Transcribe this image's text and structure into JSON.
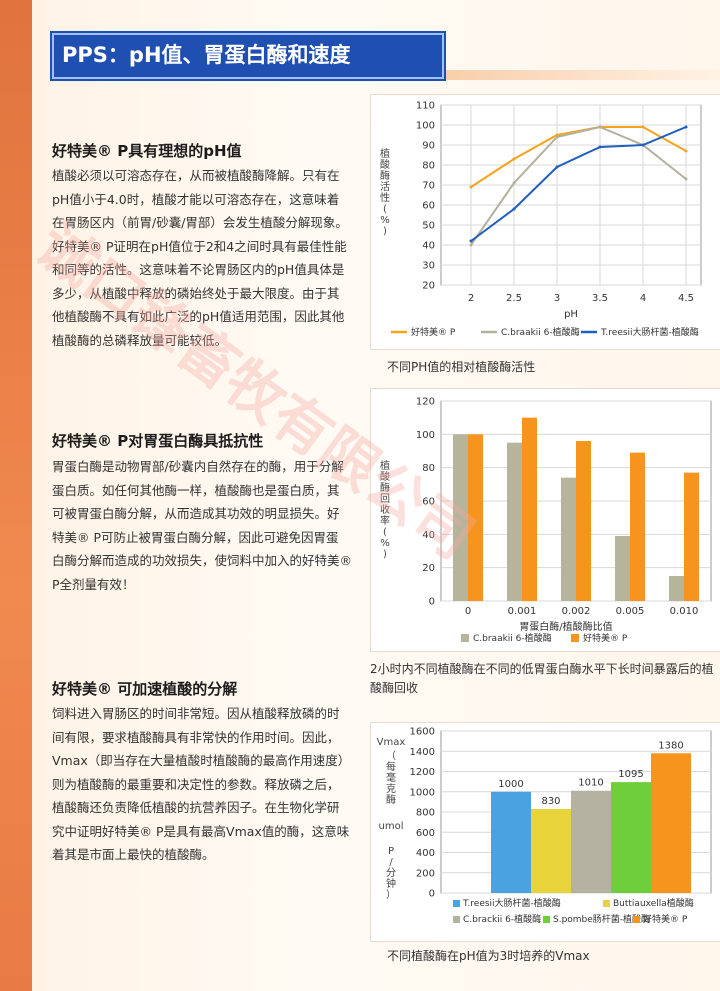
{
  "header": {
    "title": "PPS：pH值、胃蛋白酶和速度"
  },
  "sections": [
    {
      "title": "好特美® P具有理想的pH值",
      "lines": [
        "植酸必须以可溶态存在，从而被植酸酶降解。只有在",
        "pH值小于4.0时，植酸才能以可溶态存在，这意味着",
        "在胃肠区内（前胃/砂囊/胃部）会发生植酸分解现象。",
        "好特美® P证明在pH值位于2和4之间时具有最佳性能",
        "和同等的活性。这意味着不论胃肠区内的pH值具体是",
        "多少，从植酸中释放的磷始终处于最大限度。由于其",
        "他植酸酶不具有如此广泛的pH值适用范围，因此其他",
        "植酸酶的总磷释放量可能较低。"
      ]
    },
    {
      "title": "好特美® P对胃蛋白酶具抵抗性",
      "lines": [
        "胃蛋白酶是动物胃部/砂囊内自然存在的酶，用于分解",
        "蛋白质。如任何其他酶一样，植酸酶也是蛋白质，其",
        "可被胃蛋白酶分解，从而造成其功效的明显损失。好",
        "特美® P可防止被胃蛋白酶分解，因此可避免因胃蛋",
        "白酶分解而造成的功效损失，使饲料中加入的好特美®",
        "P全剂量有效！"
      ]
    },
    {
      "title": "好特美® 可加速植酸的分解",
      "lines": [
        "饲料进入胃肠区的时间非常短。因从植酸释放磷的时",
        "间有限，要求植酸酶具有非常快的作用时间。因此，",
        "Vmax（即当存在大量植酸时植酸酶的最高作用速度）",
        "则为植酸酶的最重要和决定性的参数。释放磷之后，",
        "植酸酶还负责降低植酸的抗营养因子。在生物化学研",
        "究中证明好特美® P是具有最高Vmax值的酶，这意味",
        "着其是市面上最快的植酸酶。"
      ]
    }
  ],
  "watermark": "诚口锋畜牧有限公司",
  "chart_data": [
    {
      "type": "line",
      "ylabel": "植酸酶活性(%)",
      "xlabel": "pH",
      "x": [
        2,
        2.5,
        3,
        3.5,
        4,
        4.5
      ],
      "xticks": [
        "2",
        "2.5",
        "3",
        "3.5",
        "4",
        "4.5"
      ],
      "ylim": [
        20,
        110
      ],
      "yticks": [
        "20",
        "30",
        "40",
        "50",
        "60",
        "70",
        "80",
        "90",
        "100",
        "110"
      ],
      "series": [
        {
          "name": "好特美® P",
          "color": "#f5a21c",
          "values": [
            69,
            83,
            95,
            99,
            99,
            87
          ]
        },
        {
          "name": "C.braakii 6-植酸酶",
          "color": "#b4b09c",
          "values": [
            40,
            71,
            94,
            99,
            90,
            73
          ]
        },
        {
          "name": "T.reesii大肠杆菌-植酸酶",
          "color": "#1f5fbf",
          "values": [
            42,
            58,
            79,
            89,
            90,
            99
          ]
        }
      ],
      "caption": "不同PH值的相对植酸酶活性"
    },
    {
      "type": "bar",
      "ylabel": "植酸酶回收率(%)",
      "xlabel": "胃蛋白酶/植酸酶比值",
      "categories": [
        "0",
        "0.001",
        "0.002",
        "0.005",
        "0.010"
      ],
      "ylim": [
        0,
        120
      ],
      "yticks": [
        "0",
        "20",
        "40",
        "60",
        "80",
        "100",
        "120"
      ],
      "series": [
        {
          "name": "C.braakii 6-植酸酶",
          "color": "#b7b49c",
          "values": [
            100,
            95,
            74,
            39,
            15
          ]
        },
        {
          "name": "好特美® P",
          "color": "#f7941d",
          "values": [
            100,
            110,
            96,
            89,
            77
          ]
        }
      ],
      "caption": "2小时内不同植酸酶在不同的低胃蛋白酶水平下长时间暴露后的植酸酶回收"
    },
    {
      "type": "bar",
      "ylabel": "Vmax（每毫克酶 umol P/分钟）",
      "categories": [
        "T.reesii大肠杆菌-植酸酶",
        "Buttiauxella植酸酶",
        "C.brackii 6-植酸酶",
        "S.pombe肠杆菌-植酸酶",
        "好特美® P"
      ],
      "values": [
        1000,
        830,
        1010,
        1095,
        1380
      ],
      "labels": [
        "1000",
        "830",
        "1010",
        "1095",
        "1380"
      ],
      "colors": [
        "#4aa3e0",
        "#e9d33a",
        "#b4b3a2",
        "#6fcf3a",
        "#f7941d"
      ],
      "ylim": [
        0,
        1600
      ],
      "yticks": [
        "0",
        "200",
        "400",
        "600",
        "800",
        "1000",
        "1200",
        "1400",
        "1600"
      ],
      "caption": "不同植酸酶在pH值为3时培养的Vmax"
    }
  ]
}
